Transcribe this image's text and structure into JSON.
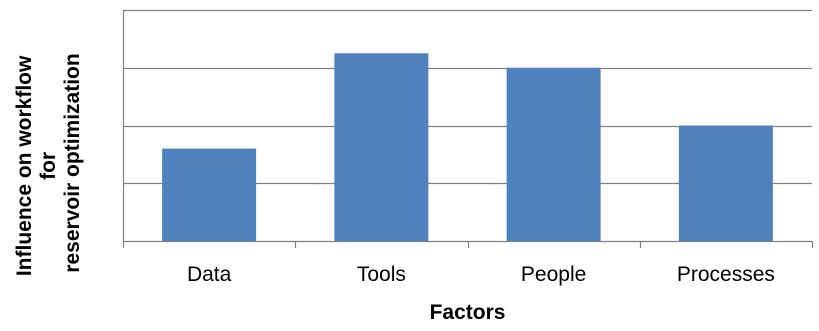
{
  "chart_data": {
    "type": "bar",
    "categories": [
      "Data",
      "Tools",
      "People",
      "Processes"
    ],
    "values": [
      1.6,
      3.25,
      3.0,
      2.0
    ],
    "title": "",
    "xlabel": "Factors",
    "ylabel_lines": [
      "Influence on workflow",
      "for",
      "reservoir optimization"
    ],
    "ylim": [
      0,
      4
    ],
    "y_tick_step": 1,
    "y_tick_labels_shown": false,
    "grid": "horizontal",
    "legend": "none",
    "colors": {
      "bar": "#4F81BD",
      "gridline": "#808080",
      "axis": "#808080"
    }
  }
}
